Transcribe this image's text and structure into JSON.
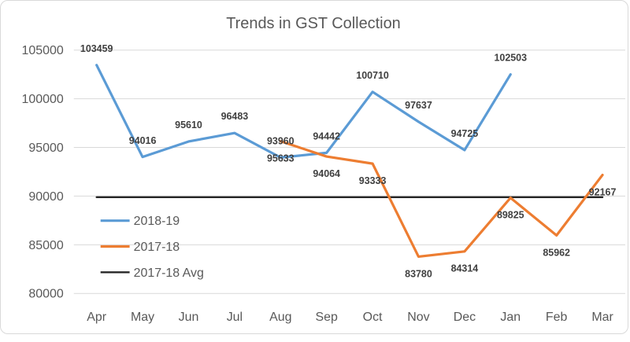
{
  "title": "Trends in GST Collection",
  "colors": {
    "series_2018_19": "#5B9BD5",
    "series_2017_18": "#ED7D31",
    "avg_line": "#262626",
    "gridline": "#d9d9d9",
    "axis_text": "#595959",
    "data_label_text": "#404040",
    "frame_border": "#d9d9d9",
    "background": "#ffffff"
  },
  "chart_data": {
    "type": "line",
    "title": "Trends in GST Collection",
    "categories": [
      "Apr",
      "May",
      "Jun",
      "Jul",
      "Aug",
      "Sep",
      "Oct",
      "Nov",
      "Dec",
      "Jan",
      "Feb",
      "Mar"
    ],
    "y_axis": {
      "min": 80000,
      "max": 105000,
      "step": 5000,
      "tick_labels": [
        "80000",
        "85000",
        "90000",
        "95000",
        "100000",
        "105000"
      ]
    },
    "grid": true,
    "legend_position": "inside-left-middle",
    "series": [
      {
        "name": "2018-19",
        "color": "#5B9BD5",
        "stroke_width": 3.2,
        "label_placement": "above",
        "show_labels": true,
        "values": [
          103459,
          94016,
          95610,
          96483,
          93960,
          94442,
          100710,
          97637,
          94725,
          102503,
          null,
          null
        ]
      },
      {
        "name": "2017-18",
        "color": "#ED7D31",
        "stroke_width": 3.2,
        "label_placement": "below",
        "show_labels": true,
        "values": [
          null,
          null,
          null,
          null,
          95633,
          94064,
          93333,
          83780,
          84314,
          89825,
          85962,
          92167
        ]
      },
      {
        "name": "2017-18 Avg",
        "color": "#262626",
        "stroke_width": 2.4,
        "label_placement": "none",
        "show_labels": false,
        "values": [
          89885,
          89885,
          89885,
          89885,
          89885,
          89885,
          89885,
          89885,
          89885,
          89885,
          89885,
          89885
        ]
      }
    ]
  },
  "legend": {
    "items": [
      {
        "label": "2018-19",
        "color": "#5B9BD5"
      },
      {
        "label": "2017-18",
        "color": "#ED7D31"
      },
      {
        "label": "2017-18 Avg",
        "color": "#262626"
      }
    ]
  }
}
